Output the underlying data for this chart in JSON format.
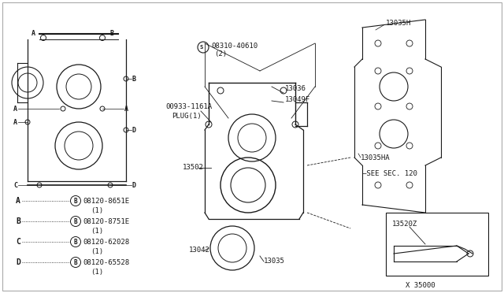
{
  "bg_color": "#ffffff",
  "line_color": "#1a1a1a",
  "text_color": "#1a1a1a",
  "figsize": [
    6.4,
    3.72
  ],
  "dpi": 100,
  "legend_items": [
    {
      "label": "A",
      "part": "08120-8651E",
      "qty": "(1)"
    },
    {
      "label": "B",
      "part": "08120-8751E",
      "qty": "(1)"
    },
    {
      "label": "C",
      "part": "08120-62028",
      "qty": "(1)"
    },
    {
      "label": "D",
      "part": "08120-65528",
      "qty": "(1)"
    }
  ]
}
